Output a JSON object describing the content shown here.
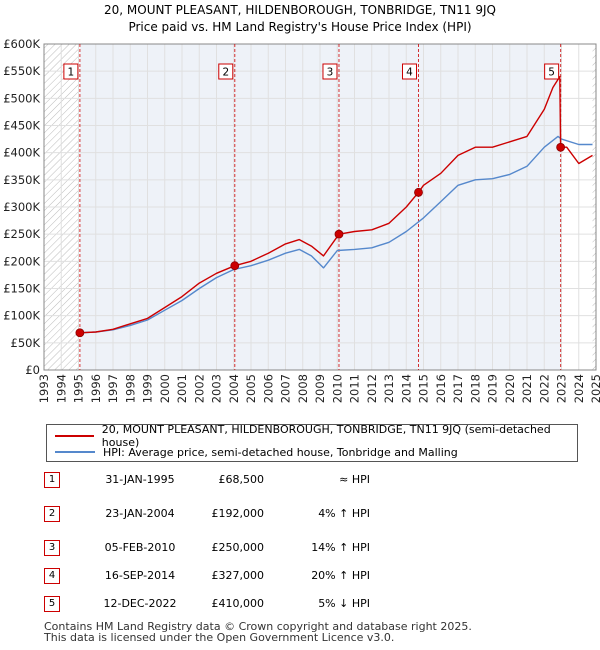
{
  "title_line1": "20, MOUNT PLEASANT, HILDENBOROUGH, TONBRIDGE, TN11 9JQ",
  "title_line2": "Price paid vs. HM Land Registry's House Price Index (HPI)",
  "colors": {
    "price": "#cc0000",
    "hpi": "#5588cc",
    "hatch": "#bbbbbb",
    "grid": "#e0e0e0",
    "band": "#eef2f8"
  },
  "legend": {
    "price_label": "20, MOUNT PLEASANT, HILDENBOROUGH, TONBRIDGE, TN11 9JQ (semi-detached house)",
    "hpi_label": "HPI: Average price, semi-detached house, Tonbridge and Malling"
  },
  "sales": [
    {
      "num": "1",
      "date": "31-JAN-1995",
      "price": "£68,500",
      "rel": "≈ HPI",
      "x": 1995.08,
      "y": 68500
    },
    {
      "num": "2",
      "date": "23-JAN-2004",
      "price": "£192,000",
      "rel": "4% ↑ HPI",
      "x": 2004.06,
      "y": 192000
    },
    {
      "num": "3",
      "date": "05-FEB-2010",
      "price": "£250,000",
      "rel": "14% ↑ HPI",
      "x": 2010.1,
      "y": 250000
    },
    {
      "num": "4",
      "date": "16-SEP-2014",
      "price": "£327,000",
      "rel": "20% ↑ HPI",
      "x": 2014.71,
      "y": 327000
    },
    {
      "num": "5",
      "date": "12-DEC-2022",
      "price": "£410,000",
      "rel": "5% ↓ HPI",
      "x": 2022.95,
      "y": 410000
    }
  ],
  "footer_line1": "Contains HM Land Registry data © Crown copyright and database right 2025.",
  "footer_line2": "This data is licensed under the Open Government Licence v3.0.",
  "chart_data": {
    "type": "line",
    "title": "Price paid vs. HM Land Registry's House Price Index (HPI)",
    "xlim": [
      1993,
      2025
    ],
    "ylim": [
      0,
      600000
    ],
    "x_ticks": [
      "1993",
      "1994",
      "1995",
      "1996",
      "1997",
      "1998",
      "1999",
      "2000",
      "2001",
      "2002",
      "2003",
      "2004",
      "2005",
      "2006",
      "2007",
      "2008",
      "2009",
      "2010",
      "2011",
      "2012",
      "2013",
      "2014",
      "2015",
      "2016",
      "2017",
      "2018",
      "2019",
      "2020",
      "2021",
      "2022",
      "2023",
      "2024",
      "2025"
    ],
    "y_ticks": [
      {
        "v": 0,
        "label": "£0"
      },
      {
        "v": 50000,
        "label": "£50K"
      },
      {
        "v": 100000,
        "label": "£100K"
      },
      {
        "v": 150000,
        "label": "£150K"
      },
      {
        "v": 200000,
        "label": "£200K"
      },
      {
        "v": 250000,
        "label": "£250K"
      },
      {
        "v": 300000,
        "label": "£300K"
      },
      {
        "v": 350000,
        "label": "£350K"
      },
      {
        "v": 400000,
        "label": "£400K"
      },
      {
        "v": 450000,
        "label": "£450K"
      },
      {
        "v": 500000,
        "label": "£500K"
      },
      {
        "v": 550000,
        "label": "£550K"
      },
      {
        "v": 600000,
        "label": "£600K"
      }
    ],
    "hatch_ranges": [
      [
        1993,
        1995.0
      ],
      [
        2024.8,
        2025
      ]
    ],
    "series": [
      {
        "name": "20, MOUNT PLEASANT, HILDENBOROUGH, TONBRIDGE, TN11 9JQ (semi-detached house)",
        "color": "#cc0000",
        "x": [
          1995.08,
          1996,
          1997,
          1998,
          1999,
          2000,
          2001,
          2002,
          2003,
          2004.06,
          2005,
          2006,
          2007,
          2007.8,
          2008.5,
          2009.2,
          2010.1,
          2011,
          2012,
          2013,
          2014,
          2014.71,
          2015,
          2016,
          2017,
          2018,
          2019,
          2020,
          2021,
          2022,
          2022.5,
          2022.9,
          2022.95,
          2023.3,
          2024,
          2024.8
        ],
        "y": [
          68500,
          70000,
          75000,
          85000,
          95000,
          115000,
          135000,
          160000,
          178000,
          192000,
          200000,
          215000,
          232000,
          240000,
          228000,
          210000,
          250000,
          255000,
          258000,
          270000,
          300000,
          327000,
          340000,
          362000,
          395000,
          410000,
          410000,
          420000,
          430000,
          480000,
          520000,
          540000,
          410000,
          410000,
          380000,
          395000
        ]
      },
      {
        "name": "HPI: Average price, semi-detached house, Tonbridge and Malling",
        "color": "#5588cc",
        "x": [
          1995,
          1996,
          1997,
          1998,
          1999,
          2000,
          2001,
          2002,
          2003,
          2004,
          2005,
          2006,
          2007,
          2007.8,
          2008.5,
          2009.2,
          2010,
          2011,
          2012,
          2013,
          2014,
          2015,
          2016,
          2017,
          2018,
          2019,
          2020,
          2021,
          2022,
          2022.8,
          2023,
          2024,
          2024.8
        ],
        "y": [
          68500,
          70000,
          74000,
          82000,
          92000,
          110000,
          128000,
          150000,
          170000,
          185000,
          192000,
          202000,
          215000,
          222000,
          210000,
          188000,
          220000,
          222000,
          225000,
          235000,
          255000,
          280000,
          310000,
          340000,
          350000,
          352000,
          360000,
          375000,
          410000,
          430000,
          425000,
          415000,
          415000
        ]
      }
    ]
  }
}
